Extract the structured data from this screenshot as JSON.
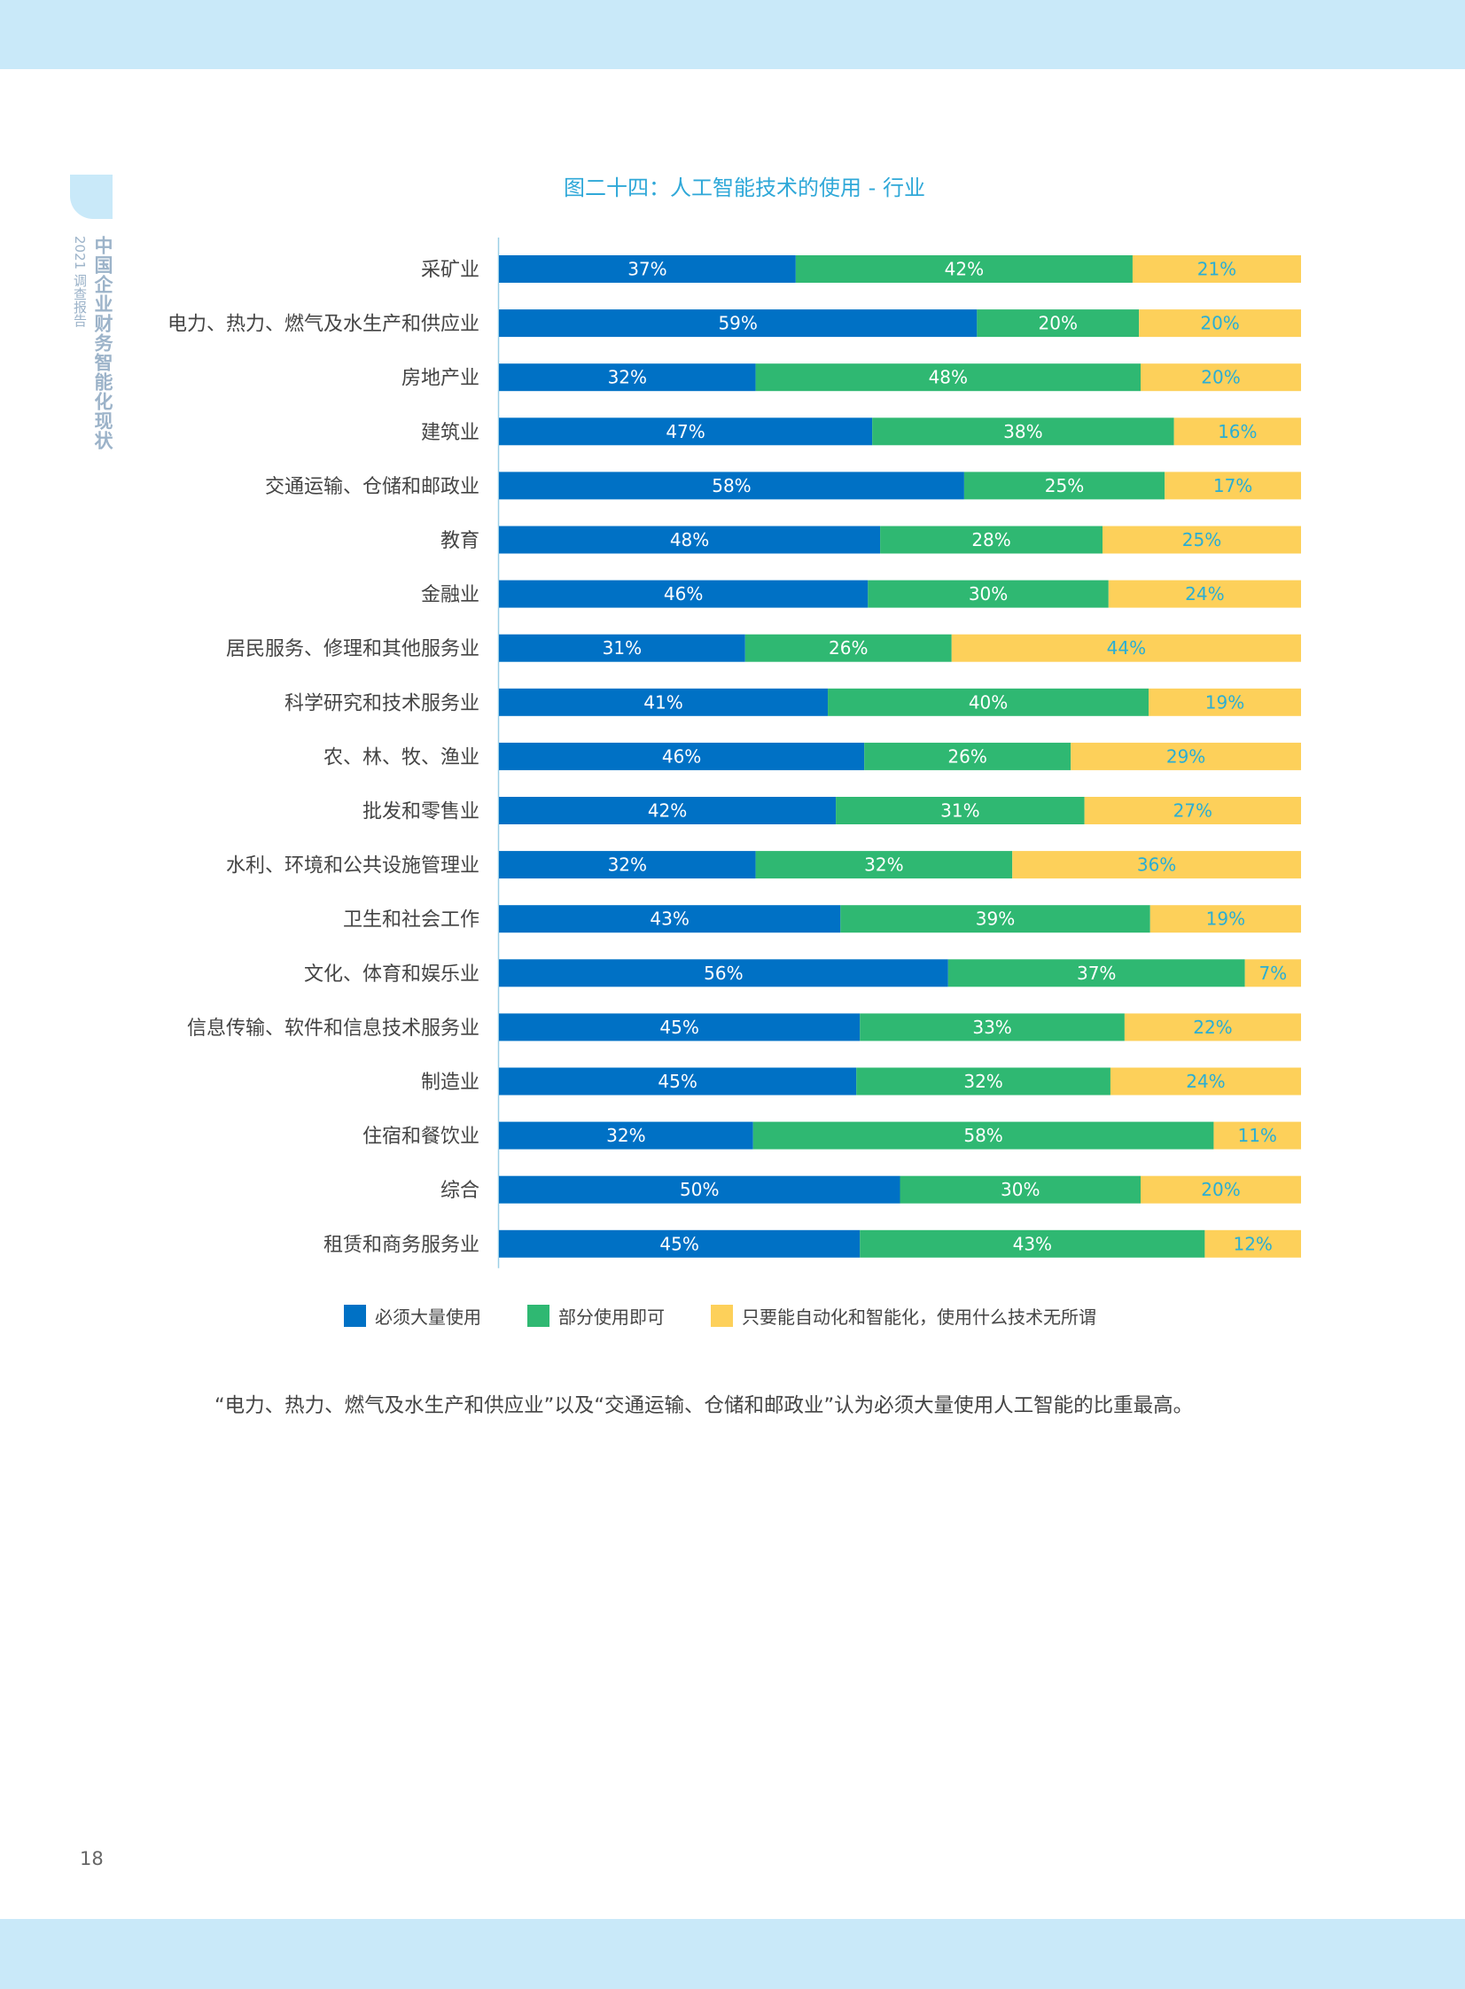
{
  "page": {
    "side_title": "中国企业财务智能化现状",
    "side_subtitle": "2021 调查报告",
    "page_number": "18",
    "footnote": "“电力、热力、燃气及水生产和供应业”以及“交通运输、仓储和邮政业”认为必须大量使用人工智能的比重最高。"
  },
  "colors": {
    "band": "#c9e9f9",
    "title": "#2fa8d8",
    "series": [
      "#0071c5",
      "#2fb872",
      "#fdd05a"
    ],
    "label_text": [
      "#ffffff",
      "#ffffff",
      "#2aaed4"
    ]
  },
  "chart_data": {
    "type": "bar",
    "orientation": "horizontal",
    "stacked": true,
    "title": "图二十四：人工智能技术的使用 - 行业",
    "categories": [
      "采矿业",
      "电力、热力、燃气及水生产和供应业",
      "房地产业",
      "建筑业",
      "交通运输、仓储和邮政业",
      "教育",
      "金融业",
      "居民服务、修理和其他服务业",
      "科学研究和技术服务业",
      "农、林、牧、渔业",
      "批发和零售业",
      "水利、环境和公共设施管理业",
      "卫生和社会工作",
      "文化、体育和娱乐业",
      "信息传输、软件和信息技术服务业",
      "制造业",
      "住宿和餐饮业",
      "综合",
      "租赁和商务服务业"
    ],
    "series": [
      {
        "name": "必须大量使用",
        "values": [
          37,
          59,
          32,
          47,
          58,
          48,
          46,
          31,
          41,
          46,
          42,
          32,
          43,
          56,
          45,
          45,
          32,
          50,
          45
        ]
      },
      {
        "name": "部分使用即可",
        "values": [
          42,
          20,
          48,
          38,
          25,
          28,
          30,
          26,
          40,
          26,
          31,
          32,
          39,
          37,
          33,
          32,
          58,
          30,
          43
        ]
      },
      {
        "name": "只要能自动化和智能化，使用什么技术无所谓",
        "values": [
          21,
          20,
          20,
          16,
          17,
          25,
          24,
          44,
          19,
          29,
          27,
          36,
          19,
          7,
          22,
          24,
          11,
          20,
          12
        ]
      }
    ],
    "unit": "%",
    "legend_position": "bottom",
    "grid": false
  }
}
